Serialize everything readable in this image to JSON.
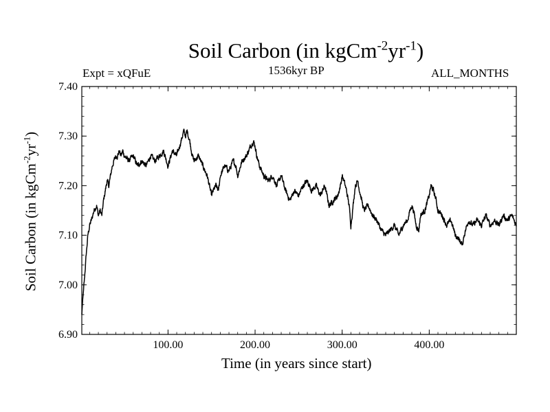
{
  "header": {
    "title_main": "Soil Carbon (in kgCm",
    "title_exp1": "-2",
    "title_mid": "yr",
    "title_exp2": "-1",
    "title_end": ")",
    "experiment": "Expt = xQFuE",
    "period": "1536kyr BP",
    "months": "ALL_MONTHS"
  },
  "axes": {
    "xlabel": "Time (in years since start)",
    "ylabel_main": "Soil Carbon (in kgCm",
    "ylabel_exp1": "-2",
    "ylabel_mid": "yr",
    "ylabel_exp2": "-1",
    "ylabel_end": ")"
  },
  "chart_data": {
    "type": "line",
    "title": "Soil Carbon (in kgCm-2yr-1)",
    "xlabel": "Time (in years since start)",
    "ylabel": "Soil Carbon (in kgCm-2yr-1)",
    "xlim": [
      1,
      500
    ],
    "ylim": [
      6.9,
      7.4
    ],
    "xticks": [
      100,
      200,
      300,
      400
    ],
    "xtick_labels": [
      "100.00",
      "200.00",
      "300.00",
      "400.00"
    ],
    "yticks": [
      6.9,
      7.0,
      7.1,
      7.2,
      7.3,
      7.4
    ],
    "ytick_labels": [
      "6.90",
      "7.00",
      "7.10",
      "7.20",
      "7.30",
      "7.40"
    ],
    "color": "#000000",
    "series": [
      {
        "name": "Soil Carbon",
        "x": [
          1,
          2,
          4,
          6,
          8,
          10,
          12,
          15,
          18,
          20,
          22,
          24,
          26,
          28,
          30,
          32,
          34,
          36,
          38,
          40,
          42,
          44,
          46,
          48,
          50,
          55,
          60,
          65,
          70,
          75,
          80,
          85,
          90,
          95,
          100,
          105,
          110,
          115,
          118,
          120,
          122,
          125,
          128,
          130,
          135,
          140,
          145,
          150,
          152,
          155,
          158,
          160,
          165,
          170,
          175,
          178,
          180,
          185,
          190,
          195,
          198,
          200,
          202,
          205,
          210,
          215,
          220,
          225,
          230,
          235,
          240,
          245,
          250,
          255,
          260,
          265,
          270,
          275,
          280,
          285,
          290,
          295,
          298,
          300,
          302,
          305,
          308,
          310,
          312,
          315,
          318,
          320,
          325,
          330,
          335,
          340,
          345,
          350,
          355,
          360,
          365,
          370,
          375,
          378,
          380,
          382,
          385,
          388,
          390,
          395,
          400,
          402,
          405,
          408,
          410,
          415,
          420,
          425,
          430,
          435,
          438,
          440,
          445,
          450,
          455,
          460,
          465,
          470,
          475,
          480,
          485,
          490,
          495,
          500
        ],
        "y": [
          6.94,
          6.97,
          7.01,
          7.06,
          7.1,
          7.12,
          7.13,
          7.15,
          7.16,
          7.14,
          7.15,
          7.14,
          7.17,
          7.19,
          7.21,
          7.2,
          7.22,
          7.24,
          7.25,
          7.26,
          7.26,
          7.27,
          7.26,
          7.27,
          7.26,
          7.25,
          7.26,
          7.24,
          7.25,
          7.24,
          7.26,
          7.25,
          7.26,
          7.27,
          7.24,
          7.27,
          7.26,
          7.29,
          7.31,
          7.3,
          7.31,
          7.29,
          7.26,
          7.25,
          7.26,
          7.24,
          7.22,
          7.18,
          7.19,
          7.2,
          7.19,
          7.22,
          7.24,
          7.23,
          7.25,
          7.24,
          7.22,
          7.25,
          7.26,
          7.28,
          7.29,
          7.28,
          7.26,
          7.24,
          7.22,
          7.21,
          7.22,
          7.2,
          7.22,
          7.19,
          7.17,
          7.19,
          7.18,
          7.2,
          7.21,
          7.19,
          7.2,
          7.18,
          7.2,
          7.16,
          7.17,
          7.18,
          7.2,
          7.22,
          7.21,
          7.19,
          7.16,
          7.12,
          7.15,
          7.2,
          7.21,
          7.19,
          7.15,
          7.16,
          7.14,
          7.13,
          7.11,
          7.1,
          7.11,
          7.12,
          7.1,
          7.12,
          7.13,
          7.15,
          7.16,
          7.15,
          7.12,
          7.11,
          7.14,
          7.15,
          7.18,
          7.2,
          7.19,
          7.17,
          7.15,
          7.14,
          7.12,
          7.13,
          7.1,
          7.09,
          7.08,
          7.1,
          7.13,
          7.12,
          7.13,
          7.12,
          7.14,
          7.12,
          7.13,
          7.12,
          7.14,
          7.13,
          7.14,
          7.12
        ]
      }
    ]
  }
}
